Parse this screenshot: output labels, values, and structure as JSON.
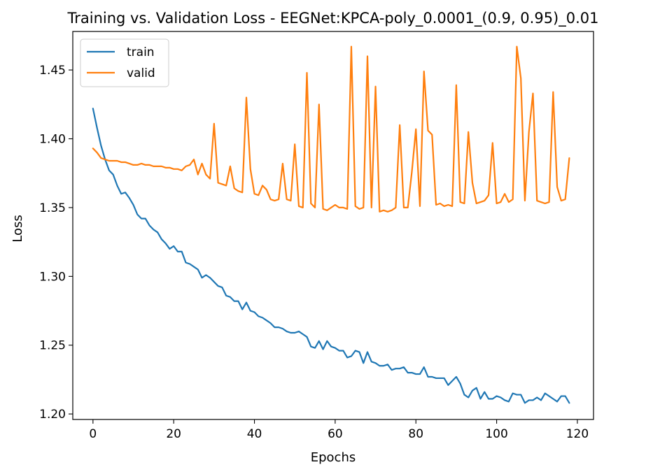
{
  "chart_data": {
    "type": "line",
    "title": "Training vs. Validation Loss - EEGNet:KPCA-poly_0.0001_(0.9, 0.95)_0.01",
    "xlabel": "Epochs",
    "ylabel": "Loss",
    "xlim": [
      -5,
      124
    ],
    "ylim": [
      1.196,
      1.478
    ],
    "xticks": [
      0,
      20,
      40,
      60,
      80,
      100,
      120
    ],
    "yticks": [
      1.2,
      1.25,
      1.3,
      1.35,
      1.4,
      1.45
    ],
    "grid": false,
    "legend": "upper-left",
    "series": [
      {
        "name": "train",
        "color": "#1f77b4",
        "values": [
          1.422,
          1.408,
          1.395,
          1.385,
          1.377,
          1.374,
          1.366,
          1.36,
          1.361,
          1.357,
          1.352,
          1.345,
          1.342,
          1.342,
          1.337,
          1.334,
          1.332,
          1.327,
          1.324,
          1.32,
          1.322,
          1.318,
          1.318,
          1.31,
          1.309,
          1.307,
          1.305,
          1.299,
          1.301,
          1.299,
          1.296,
          1.293,
          1.292,
          1.286,
          1.285,
          1.282,
          1.282,
          1.276,
          1.281,
          1.275,
          1.274,
          1.271,
          1.27,
          1.268,
          1.266,
          1.263,
          1.263,
          1.262,
          1.26,
          1.259,
          1.259,
          1.26,
          1.258,
          1.256,
          1.249,
          1.248,
          1.253,
          1.247,
          1.253,
          1.249,
          1.248,
          1.246,
          1.246,
          1.241,
          1.242,
          1.246,
          1.245,
          1.237,
          1.245,
          1.238,
          1.237,
          1.235,
          1.235,
          1.236,
          1.232,
          1.233,
          1.233,
          1.234,
          1.23,
          1.23,
          1.229,
          1.229,
          1.234,
          1.227,
          1.227,
          1.226,
          1.226,
          1.226,
          1.221,
          1.224,
          1.227,
          1.222,
          1.214,
          1.212,
          1.217,
          1.219,
          1.211,
          1.216,
          1.211,
          1.211,
          1.213,
          1.212,
          1.21,
          1.209,
          1.215,
          1.214,
          1.214,
          1.208,
          1.21,
          1.21,
          1.212,
          1.21,
          1.215,
          1.213,
          1.211,
          1.209,
          1.213,
          1.213,
          1.208
        ]
      },
      {
        "name": "valid",
        "color": "#ff7f0e",
        "values": [
          1.393,
          1.39,
          1.386,
          1.385,
          1.384,
          1.384,
          1.384,
          1.383,
          1.383,
          1.382,
          1.381,
          1.381,
          1.382,
          1.381,
          1.381,
          1.38,
          1.38,
          1.38,
          1.379,
          1.379,
          1.378,
          1.378,
          1.377,
          1.38,
          1.381,
          1.385,
          1.374,
          1.382,
          1.374,
          1.371,
          1.411,
          1.368,
          1.367,
          1.366,
          1.38,
          1.364,
          1.362,
          1.361,
          1.43,
          1.378,
          1.36,
          1.359,
          1.366,
          1.363,
          1.356,
          1.355,
          1.356,
          1.382,
          1.356,
          1.355,
          1.396,
          1.351,
          1.35,
          1.448,
          1.353,
          1.35,
          1.425,
          1.349,
          1.348,
          1.35,
          1.352,
          1.35,
          1.35,
          1.349,
          1.467,
          1.351,
          1.349,
          1.35,
          1.46,
          1.35,
          1.438,
          1.347,
          1.348,
          1.347,
          1.348,
          1.35,
          1.41,
          1.35,
          1.35,
          1.376,
          1.407,
          1.351,
          1.449,
          1.406,
          1.403,
          1.352,
          1.353,
          1.351,
          1.352,
          1.351,
          1.439,
          1.354,
          1.353,
          1.405,
          1.368,
          1.353,
          1.354,
          1.355,
          1.359,
          1.397,
          1.353,
          1.354,
          1.36,
          1.354,
          1.356,
          1.467,
          1.444,
          1.355,
          1.405,
          1.433,
          1.355,
          1.354,
          1.353,
          1.354,
          1.434,
          1.365,
          1.355,
          1.356,
          1.386
        ]
      }
    ]
  }
}
